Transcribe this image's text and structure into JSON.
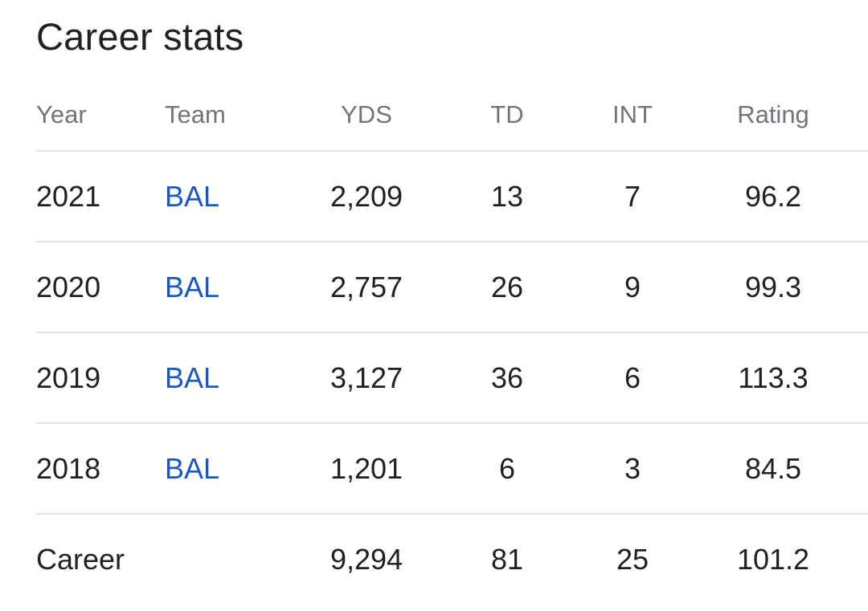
{
  "title": "Career stats",
  "columns": {
    "year": "Year",
    "team": "Team",
    "yds": "YDS",
    "td": "TD",
    "int": "INT",
    "rating": "Rating"
  },
  "rows": [
    {
      "year": "2021",
      "team": "BAL",
      "yds": "2,209",
      "td": "13",
      "int": "7",
      "rating": "96.2"
    },
    {
      "year": "2020",
      "team": "BAL",
      "yds": "2,757",
      "td": "26",
      "int": "9",
      "rating": "99.3"
    },
    {
      "year": "2019",
      "team": "BAL",
      "yds": "3,127",
      "td": "36",
      "int": "6",
      "rating": "113.3"
    },
    {
      "year": "2018",
      "team": "BAL",
      "yds": "1,201",
      "td": "6",
      "int": "3",
      "rating": "84.5"
    }
  ],
  "career": {
    "label": "Career",
    "yds": "9,294",
    "td": "81",
    "int": "25",
    "rating": "101.2"
  },
  "colors": {
    "text": "#202124",
    "header_text": "#70757a",
    "link": "#1a57c9",
    "divider": "#e3e3e3"
  }
}
